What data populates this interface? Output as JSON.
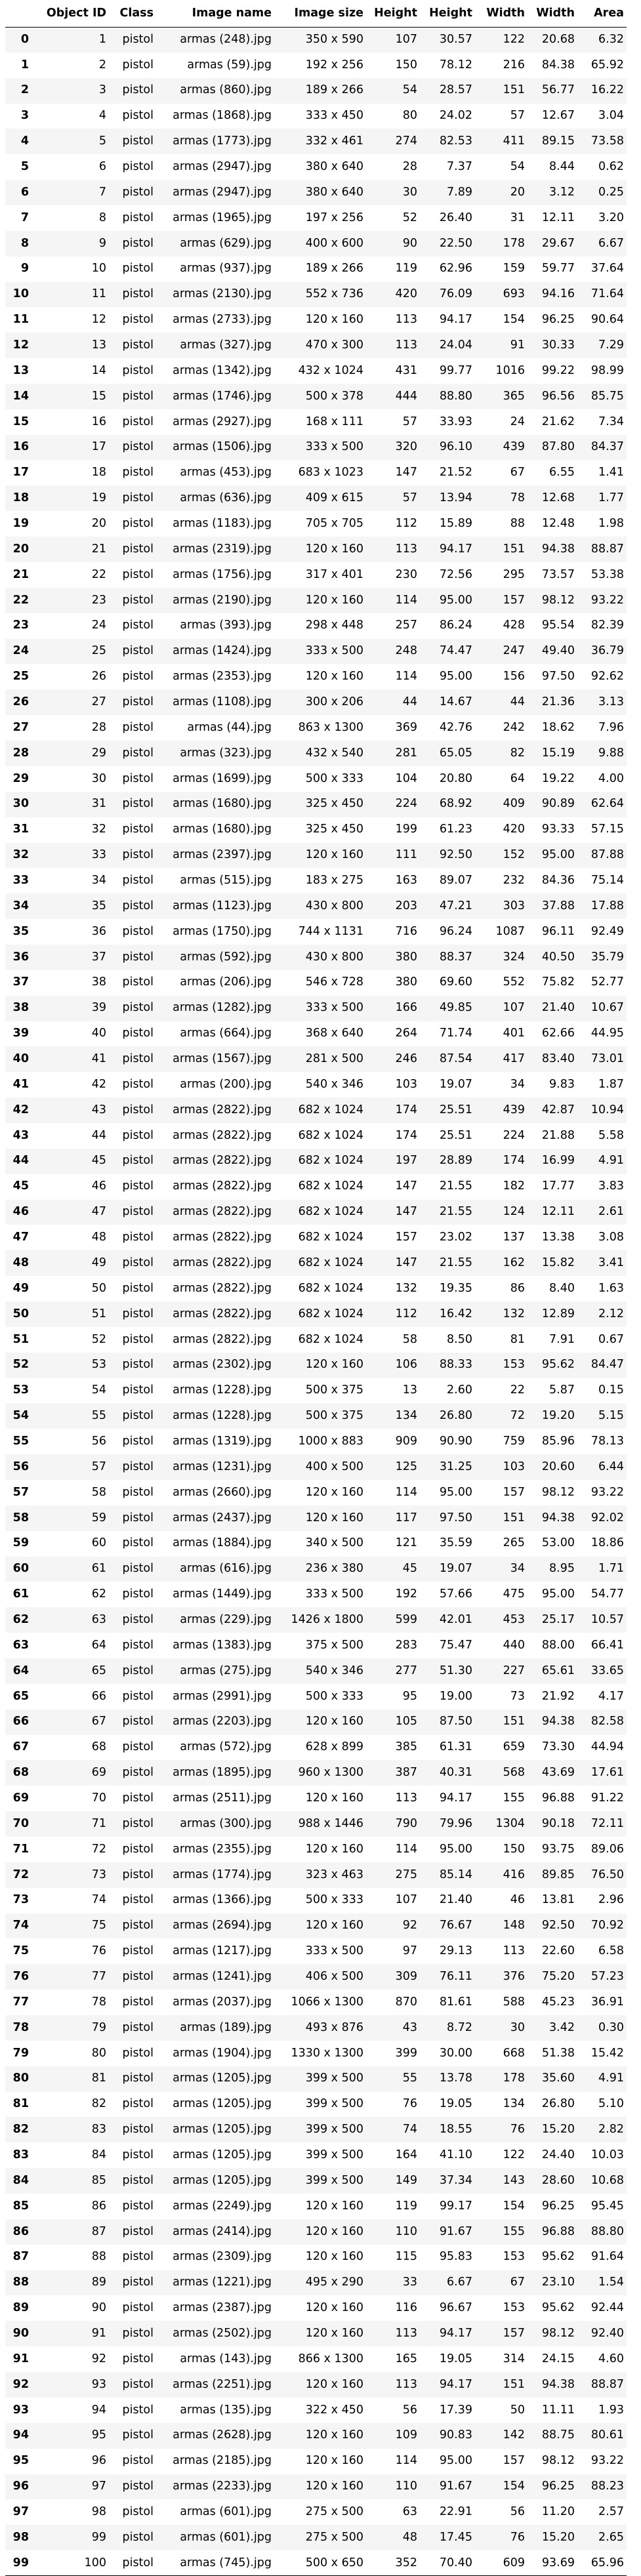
{
  "table": {
    "columns": [
      "",
      "Object ID",
      "Class",
      "Image name",
      "Image size",
      "Height",
      "Height",
      "Width",
      "Width",
      "Area"
    ],
    "rows": [
      [
        "0",
        "1",
        "pistol",
        "armas (248).jpg",
        "350 x 590",
        "107",
        "30.57",
        "122",
        "20.68",
        "6.32"
      ],
      [
        "1",
        "2",
        "pistol",
        "armas (59).jpg",
        "192 x 256",
        "150",
        "78.12",
        "216",
        "84.38",
        "65.92"
      ],
      [
        "2",
        "3",
        "pistol",
        "armas (860).jpg",
        "189 x 266",
        "54",
        "28.57",
        "151",
        "56.77",
        "16.22"
      ],
      [
        "3",
        "4",
        "pistol",
        "armas (1868).jpg",
        "333 x 450",
        "80",
        "24.02",
        "57",
        "12.67",
        "3.04"
      ],
      [
        "4",
        "5",
        "pistol",
        "armas (1773).jpg",
        "332 x 461",
        "274",
        "82.53",
        "411",
        "89.15",
        "73.58"
      ],
      [
        "5",
        "6",
        "pistol",
        "armas (2947).jpg",
        "380 x 640",
        "28",
        "7.37",
        "54",
        "8.44",
        "0.62"
      ],
      [
        "6",
        "7",
        "pistol",
        "armas (2947).jpg",
        "380 x 640",
        "30",
        "7.89",
        "20",
        "3.12",
        "0.25"
      ],
      [
        "7",
        "8",
        "pistol",
        "armas (1965).jpg",
        "197 x 256",
        "52",
        "26.40",
        "31",
        "12.11",
        "3.20"
      ],
      [
        "8",
        "9",
        "pistol",
        "armas (629).jpg",
        "400 x 600",
        "90",
        "22.50",
        "178",
        "29.67",
        "6.67"
      ],
      [
        "9",
        "10",
        "pistol",
        "armas (937).jpg",
        "189 x 266",
        "119",
        "62.96",
        "159",
        "59.77",
        "37.64"
      ],
      [
        "10",
        "11",
        "pistol",
        "armas (2130).jpg",
        "552 x 736",
        "420",
        "76.09",
        "693",
        "94.16",
        "71.64"
      ],
      [
        "11",
        "12",
        "pistol",
        "armas (2733).jpg",
        "120 x 160",
        "113",
        "94.17",
        "154",
        "96.25",
        "90.64"
      ],
      [
        "12",
        "13",
        "pistol",
        "armas (327).jpg",
        "470 x 300",
        "113",
        "24.04",
        "91",
        "30.33",
        "7.29"
      ],
      [
        "13",
        "14",
        "pistol",
        "armas (1342).jpg",
        "432 x 1024",
        "431",
        "99.77",
        "1016",
        "99.22",
        "98.99"
      ],
      [
        "14",
        "15",
        "pistol",
        "armas (1746).jpg",
        "500 x 378",
        "444",
        "88.80",
        "365",
        "96.56",
        "85.75"
      ],
      [
        "15",
        "16",
        "pistol",
        "armas (2927).jpg",
        "168 x 111",
        "57",
        "33.93",
        "24",
        "21.62",
        "7.34"
      ],
      [
        "16",
        "17",
        "pistol",
        "armas (1506).jpg",
        "333 x 500",
        "320",
        "96.10",
        "439",
        "87.80",
        "84.37"
      ],
      [
        "17",
        "18",
        "pistol",
        "armas (453).jpg",
        "683 x 1023",
        "147",
        "21.52",
        "67",
        "6.55",
        "1.41"
      ],
      [
        "18",
        "19",
        "pistol",
        "armas (636).jpg",
        "409 x 615",
        "57",
        "13.94",
        "78",
        "12.68",
        "1.77"
      ],
      [
        "19",
        "20",
        "pistol",
        "armas (1183).jpg",
        "705 x 705",
        "112",
        "15.89",
        "88",
        "12.48",
        "1.98"
      ],
      [
        "20",
        "21",
        "pistol",
        "armas (2319).jpg",
        "120 x 160",
        "113",
        "94.17",
        "151",
        "94.38",
        "88.87"
      ],
      [
        "21",
        "22",
        "pistol",
        "armas (1756).jpg",
        "317 x 401",
        "230",
        "72.56",
        "295",
        "73.57",
        "53.38"
      ],
      [
        "22",
        "23",
        "pistol",
        "armas (2190).jpg",
        "120 x 160",
        "114",
        "95.00",
        "157",
        "98.12",
        "93.22"
      ],
      [
        "23",
        "24",
        "pistol",
        "armas (393).jpg",
        "298 x 448",
        "257",
        "86.24",
        "428",
        "95.54",
        "82.39"
      ],
      [
        "24",
        "25",
        "pistol",
        "armas (1424).jpg",
        "333 x 500",
        "248",
        "74.47",
        "247",
        "49.40",
        "36.79"
      ],
      [
        "25",
        "26",
        "pistol",
        "armas (2353).jpg",
        "120 x 160",
        "114",
        "95.00",
        "156",
        "97.50",
        "92.62"
      ],
      [
        "26",
        "27",
        "pistol",
        "armas (1108).jpg",
        "300 x 206",
        "44",
        "14.67",
        "44",
        "21.36",
        "3.13"
      ],
      [
        "27",
        "28",
        "pistol",
        "armas (44).jpg",
        "863 x 1300",
        "369",
        "42.76",
        "242",
        "18.62",
        "7.96"
      ],
      [
        "28",
        "29",
        "pistol",
        "armas (323).jpg",
        "432 x 540",
        "281",
        "65.05",
        "82",
        "15.19",
        "9.88"
      ],
      [
        "29",
        "30",
        "pistol",
        "armas (1699).jpg",
        "500 x 333",
        "104",
        "20.80",
        "64",
        "19.22",
        "4.00"
      ],
      [
        "30",
        "31",
        "pistol",
        "armas (1680).jpg",
        "325 x 450",
        "224",
        "68.92",
        "409",
        "90.89",
        "62.64"
      ],
      [
        "31",
        "32",
        "pistol",
        "armas (1680).jpg",
        "325 x 450",
        "199",
        "61.23",
        "420",
        "93.33",
        "57.15"
      ],
      [
        "32",
        "33",
        "pistol",
        "armas (2397).jpg",
        "120 x 160",
        "111",
        "92.50",
        "152",
        "95.00",
        "87.88"
      ],
      [
        "33",
        "34",
        "pistol",
        "armas (515).jpg",
        "183 x 275",
        "163",
        "89.07",
        "232",
        "84.36",
        "75.14"
      ],
      [
        "34",
        "35",
        "pistol",
        "armas (1123).jpg",
        "430 x 800",
        "203",
        "47.21",
        "303",
        "37.88",
        "17.88"
      ],
      [
        "35",
        "36",
        "pistol",
        "armas (1750).jpg",
        "744 x 1131",
        "716",
        "96.24",
        "1087",
        "96.11",
        "92.49"
      ],
      [
        "36",
        "37",
        "pistol",
        "armas (592).jpg",
        "430 x 800",
        "380",
        "88.37",
        "324",
        "40.50",
        "35.79"
      ],
      [
        "37",
        "38",
        "pistol",
        "armas (206).jpg",
        "546 x 728",
        "380",
        "69.60",
        "552",
        "75.82",
        "52.77"
      ],
      [
        "38",
        "39",
        "pistol",
        "armas (1282).jpg",
        "333 x 500",
        "166",
        "49.85",
        "107",
        "21.40",
        "10.67"
      ],
      [
        "39",
        "40",
        "pistol",
        "armas (664).jpg",
        "368 x 640",
        "264",
        "71.74",
        "401",
        "62.66",
        "44.95"
      ],
      [
        "40",
        "41",
        "pistol",
        "armas (1567).jpg",
        "281 x 500",
        "246",
        "87.54",
        "417",
        "83.40",
        "73.01"
      ],
      [
        "41",
        "42",
        "pistol",
        "armas (200).jpg",
        "540 x 346",
        "103",
        "19.07",
        "34",
        "9.83",
        "1.87"
      ],
      [
        "42",
        "43",
        "pistol",
        "armas (2822).jpg",
        "682 x 1024",
        "174",
        "25.51",
        "439",
        "42.87",
        "10.94"
      ],
      [
        "43",
        "44",
        "pistol",
        "armas (2822).jpg",
        "682 x 1024",
        "174",
        "25.51",
        "224",
        "21.88",
        "5.58"
      ],
      [
        "44",
        "45",
        "pistol",
        "armas (2822).jpg",
        "682 x 1024",
        "197",
        "28.89",
        "174",
        "16.99",
        "4.91"
      ],
      [
        "45",
        "46",
        "pistol",
        "armas (2822).jpg",
        "682 x 1024",
        "147",
        "21.55",
        "182",
        "17.77",
        "3.83"
      ],
      [
        "46",
        "47",
        "pistol",
        "armas (2822).jpg",
        "682 x 1024",
        "147",
        "21.55",
        "124",
        "12.11",
        "2.61"
      ],
      [
        "47",
        "48",
        "pistol",
        "armas (2822).jpg",
        "682 x 1024",
        "157",
        "23.02",
        "137",
        "13.38",
        "3.08"
      ],
      [
        "48",
        "49",
        "pistol",
        "armas (2822).jpg",
        "682 x 1024",
        "147",
        "21.55",
        "162",
        "15.82",
        "3.41"
      ],
      [
        "49",
        "50",
        "pistol",
        "armas (2822).jpg",
        "682 x 1024",
        "132",
        "19.35",
        "86",
        "8.40",
        "1.63"
      ],
      [
        "50",
        "51",
        "pistol",
        "armas (2822).jpg",
        "682 x 1024",
        "112",
        "16.42",
        "132",
        "12.89",
        "2.12"
      ],
      [
        "51",
        "52",
        "pistol",
        "armas (2822).jpg",
        "682 x 1024",
        "58",
        "8.50",
        "81",
        "7.91",
        "0.67"
      ],
      [
        "52",
        "53",
        "pistol",
        "armas (2302).jpg",
        "120 x 160",
        "106",
        "88.33",
        "153",
        "95.62",
        "84.47"
      ],
      [
        "53",
        "54",
        "pistol",
        "armas (1228).jpg",
        "500 x 375",
        "13",
        "2.60",
        "22",
        "5.87",
        "0.15"
      ],
      [
        "54",
        "55",
        "pistol",
        "armas (1228).jpg",
        "500 x 375",
        "134",
        "26.80",
        "72",
        "19.20",
        "5.15"
      ],
      [
        "55",
        "56",
        "pistol",
        "armas (1319).jpg",
        "1000 x 883",
        "909",
        "90.90",
        "759",
        "85.96",
        "78.13"
      ],
      [
        "56",
        "57",
        "pistol",
        "armas (1231).jpg",
        "400 x 500",
        "125",
        "31.25",
        "103",
        "20.60",
        "6.44"
      ],
      [
        "57",
        "58",
        "pistol",
        "armas (2660).jpg",
        "120 x 160",
        "114",
        "95.00",
        "157",
        "98.12",
        "93.22"
      ],
      [
        "58",
        "59",
        "pistol",
        "armas (2437).jpg",
        "120 x 160",
        "117",
        "97.50",
        "151",
        "94.38",
        "92.02"
      ],
      [
        "59",
        "60",
        "pistol",
        "armas (1884).jpg",
        "340 x 500",
        "121",
        "35.59",
        "265",
        "53.00",
        "18.86"
      ],
      [
        "60",
        "61",
        "pistol",
        "armas (616).jpg",
        "236 x 380",
        "45",
        "19.07",
        "34",
        "8.95",
        "1.71"
      ],
      [
        "61",
        "62",
        "pistol",
        "armas (1449).jpg",
        "333 x 500",
        "192",
        "57.66",
        "475",
        "95.00",
        "54.77"
      ],
      [
        "62",
        "63",
        "pistol",
        "armas (229).jpg",
        "1426 x 1800",
        "599",
        "42.01",
        "453",
        "25.17",
        "10.57"
      ],
      [
        "63",
        "64",
        "pistol",
        "armas (1383).jpg",
        "375 x 500",
        "283",
        "75.47",
        "440",
        "88.00",
        "66.41"
      ],
      [
        "64",
        "65",
        "pistol",
        "armas (275).jpg",
        "540 x 346",
        "277",
        "51.30",
        "227",
        "65.61",
        "33.65"
      ],
      [
        "65",
        "66",
        "pistol",
        "armas (2991).jpg",
        "500 x 333",
        "95",
        "19.00",
        "73",
        "21.92",
        "4.17"
      ],
      [
        "66",
        "67",
        "pistol",
        "armas (2203).jpg",
        "120 x 160",
        "105",
        "87.50",
        "151",
        "94.38",
        "82.58"
      ],
      [
        "67",
        "68",
        "pistol",
        "armas (572).jpg",
        "628 x 899",
        "385",
        "61.31",
        "659",
        "73.30",
        "44.94"
      ],
      [
        "68",
        "69",
        "pistol",
        "armas (1895).jpg",
        "960 x 1300",
        "387",
        "40.31",
        "568",
        "43.69",
        "17.61"
      ],
      [
        "69",
        "70",
        "pistol",
        "armas (2511).jpg",
        "120 x 160",
        "113",
        "94.17",
        "155",
        "96.88",
        "91.22"
      ],
      [
        "70",
        "71",
        "pistol",
        "armas (300).jpg",
        "988 x 1446",
        "790",
        "79.96",
        "1304",
        "90.18",
        "72.11"
      ],
      [
        "71",
        "72",
        "pistol",
        "armas (2355).jpg",
        "120 x 160",
        "114",
        "95.00",
        "150",
        "93.75",
        "89.06"
      ],
      [
        "72",
        "73",
        "pistol",
        "armas (1774).jpg",
        "323 x 463",
        "275",
        "85.14",
        "416",
        "89.85",
        "76.50"
      ],
      [
        "73",
        "74",
        "pistol",
        "armas (1366).jpg",
        "500 x 333",
        "107",
        "21.40",
        "46",
        "13.81",
        "2.96"
      ],
      [
        "74",
        "75",
        "pistol",
        "armas (2694).jpg",
        "120 x 160",
        "92",
        "76.67",
        "148",
        "92.50",
        "70.92"
      ],
      [
        "75",
        "76",
        "pistol",
        "armas (1217).jpg",
        "333 x 500",
        "97",
        "29.13",
        "113",
        "22.60",
        "6.58"
      ],
      [
        "76",
        "77",
        "pistol",
        "armas (1241).jpg",
        "406 x 500",
        "309",
        "76.11",
        "376",
        "75.20",
        "57.23"
      ],
      [
        "77",
        "78",
        "pistol",
        "armas (2037).jpg",
        "1066 x 1300",
        "870",
        "81.61",
        "588",
        "45.23",
        "36.91"
      ],
      [
        "78",
        "79",
        "pistol",
        "armas (189).jpg",
        "493 x 876",
        "43",
        "8.72",
        "30",
        "3.42",
        "0.30"
      ],
      [
        "79",
        "80",
        "pistol",
        "armas (1904).jpg",
        "1330 x 1300",
        "399",
        "30.00",
        "668",
        "51.38",
        "15.42"
      ],
      [
        "80",
        "81",
        "pistol",
        "armas (1205).jpg",
        "399 x 500",
        "55",
        "13.78",
        "178",
        "35.60",
        "4.91"
      ],
      [
        "81",
        "82",
        "pistol",
        "armas (1205).jpg",
        "399 x 500",
        "76",
        "19.05",
        "134",
        "26.80",
        "5.10"
      ],
      [
        "82",
        "83",
        "pistol",
        "armas (1205).jpg",
        "399 x 500",
        "74",
        "18.55",
        "76",
        "15.20",
        "2.82"
      ],
      [
        "83",
        "84",
        "pistol",
        "armas (1205).jpg",
        "399 x 500",
        "164",
        "41.10",
        "122",
        "24.40",
        "10.03"
      ],
      [
        "84",
        "85",
        "pistol",
        "armas (1205).jpg",
        "399 x 500",
        "149",
        "37.34",
        "143",
        "28.60",
        "10.68"
      ],
      [
        "85",
        "86",
        "pistol",
        "armas (2249).jpg",
        "120 x 160",
        "119",
        "99.17",
        "154",
        "96.25",
        "95.45"
      ],
      [
        "86",
        "87",
        "pistol",
        "armas (2414).jpg",
        "120 x 160",
        "110",
        "91.67",
        "155",
        "96.88",
        "88.80"
      ],
      [
        "87",
        "88",
        "pistol",
        "armas (2309).jpg",
        "120 x 160",
        "115",
        "95.83",
        "153",
        "95.62",
        "91.64"
      ],
      [
        "88",
        "89",
        "pistol",
        "armas (1221).jpg",
        "495 x 290",
        "33",
        "6.67",
        "67",
        "23.10",
        "1.54"
      ],
      [
        "89",
        "90",
        "pistol",
        "armas (2387).jpg",
        "120 x 160",
        "116",
        "96.67",
        "153",
        "95.62",
        "92.44"
      ],
      [
        "90",
        "91",
        "pistol",
        "armas (2502).jpg",
        "120 x 160",
        "113",
        "94.17",
        "157",
        "98.12",
        "92.40"
      ],
      [
        "91",
        "92",
        "pistol",
        "armas (143).jpg",
        "866 x 1300",
        "165",
        "19.05",
        "314",
        "24.15",
        "4.60"
      ],
      [
        "92",
        "93",
        "pistol",
        "armas (2251).jpg",
        "120 x 160",
        "113",
        "94.17",
        "151",
        "94.38",
        "88.87"
      ],
      [
        "93",
        "94",
        "pistol",
        "armas (135).jpg",
        "322 x 450",
        "56",
        "17.39",
        "50",
        "11.11",
        "1.93"
      ],
      [
        "94",
        "95",
        "pistol",
        "armas (2628).jpg",
        "120 x 160",
        "109",
        "90.83",
        "142",
        "88.75",
        "80.61"
      ],
      [
        "95",
        "96",
        "pistol",
        "armas (2185).jpg",
        "120 x 160",
        "114",
        "95.00",
        "157",
        "98.12",
        "93.22"
      ],
      [
        "96",
        "97",
        "pistol",
        "armas (2233).jpg",
        "120 x 160",
        "110",
        "91.67",
        "154",
        "96.25",
        "88.23"
      ],
      [
        "97",
        "98",
        "pistol",
        "armas (601).jpg",
        "275 x 500",
        "63",
        "22.91",
        "56",
        "11.20",
        "2.57"
      ],
      [
        "98",
        "99",
        "pistol",
        "armas (601).jpg",
        "275 x 500",
        "48",
        "17.45",
        "76",
        "15.20",
        "2.65"
      ],
      [
        "99",
        "100",
        "pistol",
        "armas (745).jpg",
        "500 x 650",
        "352",
        "70.40",
        "609",
        "93.69",
        "65.96"
      ]
    ]
  }
}
